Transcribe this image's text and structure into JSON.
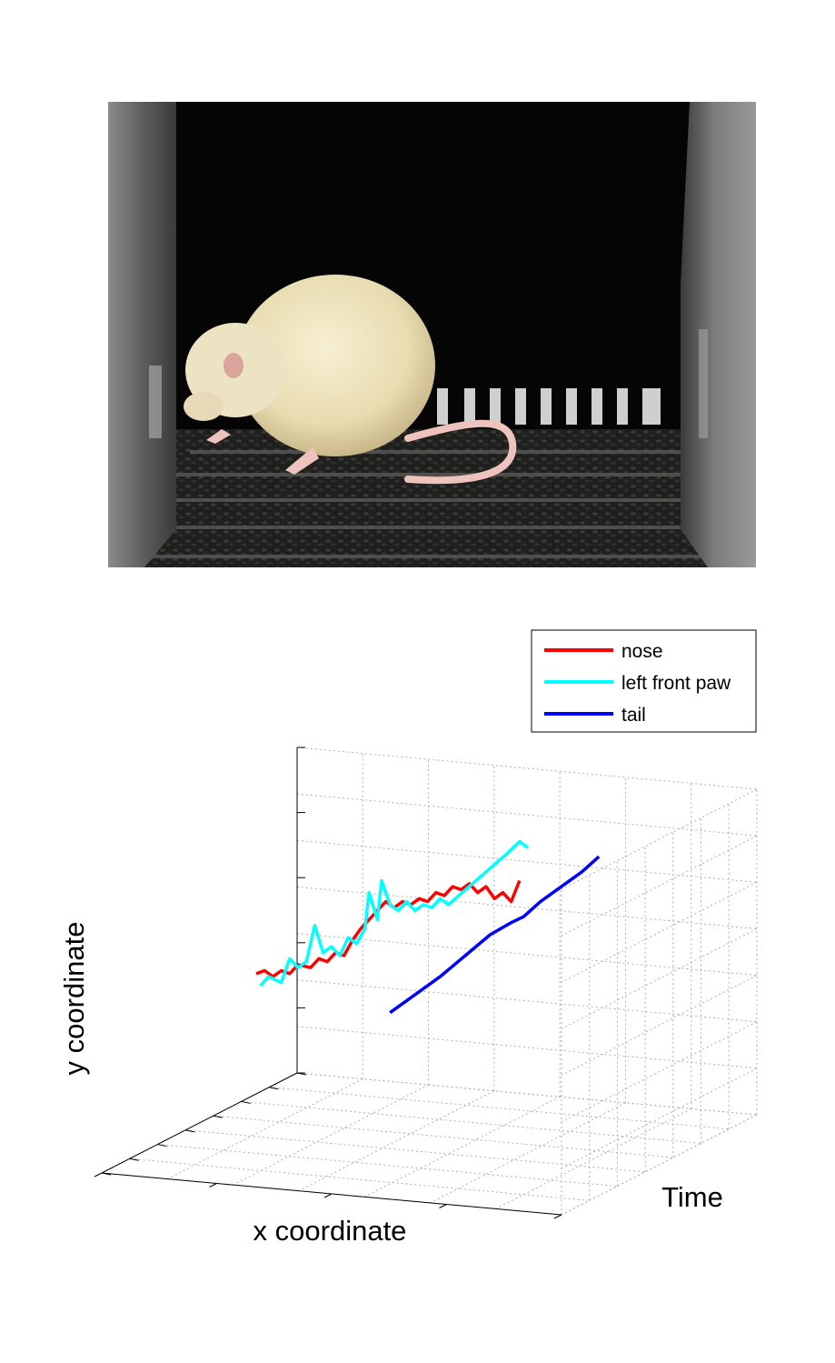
{
  "photo": {
    "subject": "rat",
    "colors": {
      "background": "#050505",
      "wall": "#6f6f6f",
      "floor": "#2a2a28",
      "fur": "#ede6c4",
      "skin": "#efc3bd"
    }
  },
  "chart_data": {
    "type": "line",
    "projection": "3d",
    "title": "",
    "xlabel": "x coordinate",
    "ylabel": "y coordinate",
    "zlabel": "Time",
    "xlim": [
      0,
      1
    ],
    "ylim": [
      0,
      1
    ],
    "tlim": [
      0,
      1
    ],
    "grid": true,
    "legend_position": "top-right",
    "series": [
      {
        "name": "nose",
        "color": "#ff0000",
        "points": [
          [
            0.2,
            0.31,
            0.0
          ],
          [
            0.22,
            0.32,
            0.02
          ],
          [
            0.24,
            0.3,
            0.04
          ],
          [
            0.26,
            0.32,
            0.06
          ],
          [
            0.28,
            0.31,
            0.08
          ],
          [
            0.3,
            0.34,
            0.1
          ],
          [
            0.33,
            0.33,
            0.12
          ],
          [
            0.35,
            0.36,
            0.14
          ],
          [
            0.37,
            0.35,
            0.16
          ],
          [
            0.39,
            0.38,
            0.18
          ],
          [
            0.41,
            0.37,
            0.2
          ],
          [
            0.43,
            0.42,
            0.22
          ],
          [
            0.45,
            0.46,
            0.24
          ],
          [
            0.47,
            0.49,
            0.26
          ],
          [
            0.49,
            0.52,
            0.28
          ],
          [
            0.51,
            0.55,
            0.3
          ],
          [
            0.53,
            0.53,
            0.32
          ],
          [
            0.55,
            0.55,
            0.34
          ],
          [
            0.57,
            0.54,
            0.36
          ],
          [
            0.59,
            0.56,
            0.38
          ],
          [
            0.61,
            0.55,
            0.4
          ],
          [
            0.63,
            0.58,
            0.42
          ],
          [
            0.65,
            0.57,
            0.44
          ],
          [
            0.67,
            0.6,
            0.46
          ],
          [
            0.69,
            0.59,
            0.48
          ],
          [
            0.71,
            0.61,
            0.5
          ],
          [
            0.73,
            0.58,
            0.52
          ],
          [
            0.75,
            0.6,
            0.54
          ],
          [
            0.77,
            0.56,
            0.56
          ],
          [
            0.79,
            0.58,
            0.58
          ],
          [
            0.81,
            0.55,
            0.6
          ],
          [
            0.83,
            0.62,
            0.62
          ]
        ]
      },
      {
        "name": "left front paw",
        "color": "#00ffff",
        "points": [
          [
            0.21,
            0.27,
            0.0
          ],
          [
            0.23,
            0.3,
            0.02
          ],
          [
            0.26,
            0.28,
            0.04
          ],
          [
            0.28,
            0.36,
            0.06
          ],
          [
            0.3,
            0.33,
            0.08
          ],
          [
            0.32,
            0.35,
            0.1
          ],
          [
            0.34,
            0.47,
            0.12
          ],
          [
            0.36,
            0.38,
            0.14
          ],
          [
            0.38,
            0.4,
            0.16
          ],
          [
            0.4,
            0.37,
            0.18
          ],
          [
            0.42,
            0.43,
            0.2
          ],
          [
            0.44,
            0.41,
            0.22
          ],
          [
            0.46,
            0.46,
            0.24
          ],
          [
            0.47,
            0.58,
            0.26
          ],
          [
            0.49,
            0.49,
            0.28
          ],
          [
            0.5,
            0.62,
            0.3
          ],
          [
            0.52,
            0.54,
            0.32
          ],
          [
            0.54,
            0.52,
            0.34
          ],
          [
            0.56,
            0.55,
            0.36
          ],
          [
            0.58,
            0.52,
            0.38
          ],
          [
            0.6,
            0.54,
            0.4
          ],
          [
            0.62,
            0.53,
            0.42
          ],
          [
            0.64,
            0.56,
            0.44
          ],
          [
            0.66,
            0.54,
            0.46
          ],
          [
            0.8,
            0.71,
            0.6
          ],
          [
            0.83,
            0.75,
            0.62
          ],
          [
            0.85,
            0.73,
            0.64
          ]
        ]
      },
      {
        "name": "tail",
        "color": "#0000ff",
        "points": [
          [
            0.52,
            0.18,
            0.4
          ],
          [
            0.58,
            0.24,
            0.44
          ],
          [
            0.64,
            0.3,
            0.48
          ],
          [
            0.7,
            0.37,
            0.52
          ],
          [
            0.76,
            0.44,
            0.56
          ],
          [
            0.81,
            0.48,
            0.6
          ],
          [
            0.84,
            0.5,
            0.62
          ],
          [
            0.88,
            0.55,
            0.65
          ],
          [
            0.93,
            0.6,
            0.68
          ],
          [
            0.98,
            0.65,
            0.71
          ],
          [
            1.02,
            0.7,
            0.74
          ]
        ]
      }
    ]
  }
}
